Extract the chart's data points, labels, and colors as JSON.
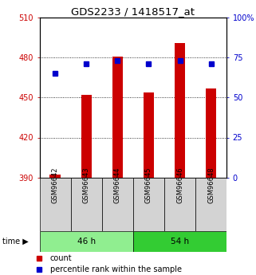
{
  "title": "GDS2233 / 1418517_at",
  "samples": [
    "GSM96642",
    "GSM96643",
    "GSM96644",
    "GSM96645",
    "GSM96646",
    "GSM96648"
  ],
  "groups": [
    {
      "label": "46 h",
      "indices": [
        0,
        1,
        2
      ],
      "color": "#90ee90"
    },
    {
      "label": "54 h",
      "indices": [
        3,
        4,
        5
      ],
      "color": "#33cc33"
    }
  ],
  "count_values": [
    392,
    452,
    481,
    454,
    491,
    457
  ],
  "count_base": 390,
  "percentile_values": [
    65,
    71,
    73,
    71,
    73,
    71
  ],
  "ylim_left": [
    390,
    510
  ],
  "ylim_right": [
    0,
    100
  ],
  "yticks_left": [
    390,
    420,
    450,
    480,
    510
  ],
  "yticks_right": [
    0,
    25,
    50,
    75,
    100
  ],
  "bar_color": "#cc0000",
  "dot_color": "#0000cc",
  "bar_width": 0.35,
  "legend_red_label": "count",
  "legend_blue_label": "percentile rank within the sample",
  "left_tick_color": "#cc0000",
  "right_tick_color": "#0000cc",
  "title_fontsize": 9.5,
  "tick_fontsize": 7,
  "legend_fontsize": 7
}
